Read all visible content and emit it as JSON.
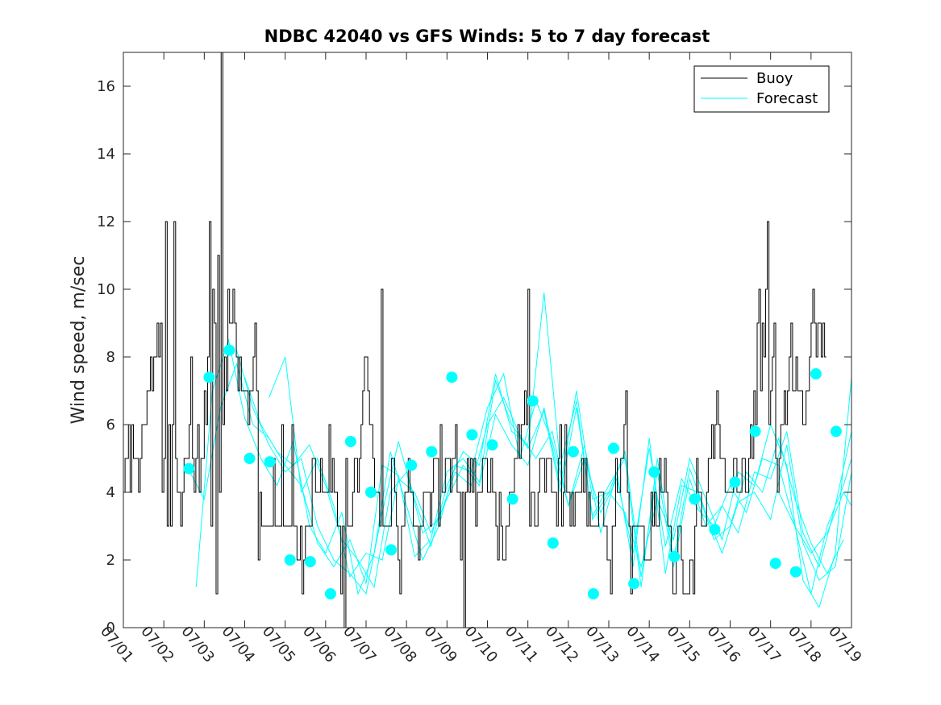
{
  "chart_data": {
    "type": "line",
    "title": "NDBC 42040 vs GFS Winds: 5 to 7 day forecast",
    "xlabel": "",
    "ylabel": "Wind speed, m/sec",
    "xlim": [
      0,
      18
    ],
    "ylim": [
      0,
      17
    ],
    "xticks": [
      0,
      1,
      2,
      3,
      4,
      5,
      6,
      7,
      8,
      9,
      10,
      11,
      12,
      13,
      14,
      15,
      16,
      17,
      18
    ],
    "xtick_labels": [
      "07/01",
      "07/02",
      "07/03",
      "07/04",
      "07/05",
      "07/06",
      "07/07",
      "07/08",
      "07/09",
      "07/10",
      "07/11",
      "07/12",
      "07/13",
      "07/14",
      "07/15",
      "07/16",
      "07/17",
      "07/18",
      "07/19"
    ],
    "yticks": [
      0,
      2,
      4,
      6,
      8,
      10,
      12,
      14,
      16
    ],
    "ytick_labels": [
      "0",
      "2",
      "4",
      "6",
      "8",
      "10",
      "12",
      "14",
      "16"
    ],
    "grid": false,
    "legend_position": "top-right",
    "colors": {
      "buoy": "#000000",
      "forecast": "#00ffff",
      "axis": "#262626"
    },
    "series": [
      {
        "name": "Buoy",
        "style": "stairs",
        "x_step_days": 0.04167,
        "x_start": 0,
        "values": [
          4,
          5,
          5,
          6,
          4,
          6,
          5,
          5,
          5,
          4,
          5,
          6,
          6,
          6,
          7,
          7,
          8,
          7,
          8,
          8,
          9,
          8,
          9,
          4,
          5,
          12,
          3,
          6,
          3,
          6,
          12,
          5,
          4,
          4,
          3,
          4,
          5,
          5,
          5,
          6,
          8,
          5,
          4,
          5,
          6,
          4,
          5,
          5,
          7,
          6,
          8,
          12,
          3,
          10,
          9,
          1,
          11,
          4,
          17,
          6,
          8,
          7,
          10,
          9,
          9,
          10,
          9,
          8,
          7,
          8,
          7,
          7,
          7,
          7,
          6,
          7,
          7,
          8,
          9,
          7,
          2,
          4,
          3,
          3,
          3,
          3,
          3,
          3,
          3,
          5,
          3,
          3,
          3,
          3,
          6,
          3,
          3,
          3,
          3,
          3,
          6,
          3,
          3,
          2,
          2,
          3,
          1,
          2,
          3,
          3,
          3,
          3,
          5,
          5,
          4,
          4,
          4,
          5,
          4,
          4,
          4,
          4,
          6,
          4,
          5,
          4,
          4,
          3,
          3,
          1,
          3,
          0,
          5,
          3,
          3,
          3,
          4,
          5,
          5,
          4,
          5,
          6,
          7,
          8,
          8,
          7,
          6,
          6,
          5,
          4,
          4,
          4,
          3,
          10,
          3,
          3,
          3,
          3,
          3,
          5,
          5,
          4,
          3,
          2,
          1,
          3,
          3,
          4,
          4,
          5,
          4,
          4,
          3,
          3,
          3,
          2,
          3,
          3,
          4,
          4,
          4,
          4,
          3,
          4,
          5,
          5,
          5,
          3,
          6,
          4,
          4,
          5,
          5,
          5,
          4,
          5,
          5,
          6,
          4,
          4,
          2,
          4,
          0,
          4,
          5,
          4,
          5,
          4,
          5,
          3,
          4,
          4,
          4,
          5,
          5,
          5,
          4,
          4,
          5,
          4,
          4,
          3,
          2,
          4,
          3,
          2,
          2,
          3,
          3,
          4,
          4,
          4,
          5,
          5,
          6,
          5,
          6,
          6,
          7,
          6,
          10,
          3,
          4,
          4,
          3,
          3,
          4,
          5,
          5,
          5,
          4,
          5,
          5,
          5,
          4,
          4,
          4,
          3,
          5,
          6,
          3,
          4,
          6,
          4,
          4,
          3,
          4,
          3,
          4,
          4,
          4,
          4,
          5,
          4,
          5,
          3,
          4,
          3,
          3,
          3,
          3,
          3,
          4,
          4,
          4,
          3,
          3,
          2,
          2,
          1,
          3,
          3,
          5,
          4,
          4,
          5,
          5,
          6,
          7,
          4,
          3,
          1,
          3,
          3,
          3,
          3,
          3,
          3,
          3,
          2,
          2,
          2,
          2,
          4,
          3,
          4,
          3,
          3,
          5,
          4,
          4,
          5,
          4,
          3,
          3,
          2,
          1,
          1,
          2,
          3,
          3,
          2,
          1,
          1,
          1,
          1,
          2,
          2,
          1,
          3,
          5,
          4,
          4,
          3,
          3,
          3,
          4,
          5,
          5,
          6,
          5,
          6,
          7,
          6,
          5,
          5,
          5,
          4,
          4,
          4,
          4,
          4,
          5,
          5,
          4,
          4,
          4,
          5,
          5,
          4,
          4,
          5,
          6,
          5,
          7,
          6,
          9,
          10,
          7,
          9,
          8,
          10,
          12,
          6,
          7,
          8,
          9,
          5,
          4,
          5,
          6,
          6,
          7,
          6,
          7,
          8,
          9,
          7,
          7,
          8,
          7,
          7,
          7,
          6,
          6,
          7,
          7,
          8,
          9,
          10,
          9,
          8,
          9,
          9,
          8,
          9,
          8
        ]
      },
      {
        "name": "Forecast",
        "style": "lines",
        "note_lines": "multiple overlapping forecast runs drawn in cyan",
        "runs": [
          {
            "x": [
              1.6,
              2.0,
              2.4,
              2.8,
              3.2,
              3.6,
              4.0,
              4.4,
              4.8,
              5.2,
              5.6,
              6.0,
              6.4,
              6.8,
              7.2,
              7.6,
              8.0,
              8.4,
              8.8,
              9.2,
              9.6,
              10.0,
              10.4,
              10.8,
              11.2,
              11.6,
              12.0,
              12.4,
              12.8,
              13.2,
              13.6,
              14.0,
              14.4,
              14.8,
              15.2,
              15.6,
              16.0,
              16.4,
              16.8,
              17.2,
              17.6,
              18.0
            ],
            "y": [
              4.7,
              3.8,
              6.5,
              7.8,
              6.0,
              5.6,
              4.8,
              4.2,
              2.5,
              1.8,
              2.6,
              1.3,
              4.8,
              4.5,
              2.1,
              2.6,
              4.6,
              5.0,
              4.3,
              7.3,
              6.0,
              5.3,
              6.4,
              4.0,
              6.5,
              3.3,
              4.2,
              5.0,
              1.2,
              5.0,
              2.0,
              4.7,
              3.4,
              2.2,
              3.7,
              4.0,
              3.2,
              5.4,
              2.5,
              1.4,
              1.8,
              4.6
            ]
          },
          {
            "x": [
              1.8,
              2.2,
              2.6,
              3.0,
              3.4,
              3.8,
              4.2,
              4.6,
              5.0,
              5.4,
              5.8,
              6.2,
              6.6,
              7.0,
              7.4,
              7.8,
              8.2,
              8.6,
              9.0,
              9.4,
              9.8,
              10.2,
              10.6,
              11.0,
              11.4,
              11.8,
              12.2,
              12.6,
              13.0,
              13.4,
              13.8,
              14.2,
              14.6,
              15.0,
              15.4,
              15.8,
              16.2,
              16.6,
              17.0,
              17.4,
              17.8
            ],
            "y": [
              1.2,
              7.0,
              8.5,
              6.2,
              5.0,
              4.2,
              5.5,
              3.0,
              2.2,
              3.4,
              1.0,
              2.2,
              5.2,
              3.6,
              2.0,
              3.0,
              4.8,
              4.6,
              6.5,
              7.5,
              5.0,
              6.7,
              5.5,
              3.6,
              5.4,
              2.8,
              4.6,
              1.8,
              5.6,
              1.6,
              4.2,
              4.0,
              2.6,
              3.0,
              4.6,
              4.0,
              5.6,
              3.8,
              2.5,
              1.6,
              2.6
            ]
          },
          {
            "x": [
              2.8,
              3.2,
              3.6,
              4.0,
              4.4,
              4.8,
              5.2,
              5.6,
              6.0,
              6.4,
              6.8,
              7.2,
              7.6,
              8.0,
              8.4,
              8.8,
              9.2,
              9.6,
              10.0,
              10.4,
              10.8,
              11.2,
              11.6,
              12.0,
              12.4,
              12.8,
              13.2,
              13.6,
              14.0,
              14.4,
              14.8,
              15.2,
              15.6,
              16.0,
              16.4,
              16.8,
              17.2,
              17.6,
              18.0
            ],
            "y": [
              8.2,
              6.5,
              5.4,
              4.6,
              5.0,
              3.0,
              2.0,
              1.6,
              1.0,
              3.4,
              5.5,
              3.8,
              2.4,
              4.2,
              5.2,
              4.8,
              7.5,
              5.8,
              5.4,
              9.9,
              4.8,
              6.7,
              3.2,
              4.0,
              5.2,
              1.5,
              4.6,
              1.8,
              4.4,
              3.0,
              3.6,
              2.8,
              4.6,
              4.4,
              5.8,
              2.8,
              1.8,
              3.6,
              5.8
            ]
          },
          {
            "x": [
              3.0,
              3.4,
              3.8,
              4.2,
              4.6,
              5.0,
              5.4,
              5.8,
              6.2,
              6.6,
              7.0,
              7.4,
              7.8,
              8.2,
              8.6,
              9.0,
              9.4,
              9.8,
              10.2,
              10.6,
              11.0,
              11.4,
              11.8,
              12.2,
              12.6,
              13.0,
              13.4,
              13.8,
              14.2,
              14.6,
              15.0,
              15.4,
              15.8,
              16.2,
              16.6,
              17.0,
              17.4,
              17.8,
              18.0
            ],
            "y": [
              7.4,
              6.0,
              5.2,
              4.8,
              5.4,
              4.2,
              2.6,
              2.0,
              1.2,
              4.0,
              4.6,
              2.8,
              3.2,
              4.6,
              4.2,
              6.0,
              6.8,
              5.7,
              5.0,
              5.8,
              3.6,
              5.0,
              3.4,
              4.4,
              2.2,
              5.3,
              2.4,
              4.4,
              3.5,
              3.0,
              4.2,
              3.4,
              5.0,
              4.8,
              3.0,
              2.2,
              2.8,
              4.0,
              3.6
            ]
          },
          {
            "x": [
              3.6,
              4.0,
              4.4,
              4.8,
              5.2,
              5.6,
              6.0,
              6.4,
              6.8,
              7.2,
              7.6,
              8.0,
              8.4,
              8.8,
              9.2,
              9.6,
              10.0,
              10.4,
              10.8,
              11.2,
              11.6,
              12.0,
              12.4,
              12.8,
              13.2,
              13.6,
              14.0,
              14.4,
              14.8,
              15.2,
              15.6,
              16.0,
              16.4,
              16.8,
              17.2,
              17.6,
              18.0
            ],
            "y": [
              6.8,
              8.0,
              4.0,
              5.0,
              3.6,
              1.5,
              2.2,
              2.0,
              4.4,
              4.0,
              2.8,
              3.8,
              4.8,
              4.2,
              6.3,
              5.4,
              4.8,
              6.5,
              4.2,
              7.0,
              3.8,
              4.0,
              3.4,
              1.8,
              3.8,
              2.6,
              5.0,
              3.8,
              2.6,
              4.6,
              4.2,
              6.0,
              4.8,
              1.4,
              0.6,
              2.2,
              7.4
            ]
          },
          {
            "x": [
              16.2,
              16.6,
              17.0,
              17.4,
              17.8,
              18.0
            ],
            "y": [
              4.0,
              3.0,
              1.0,
              3.0,
              4.2,
              5.0
            ]
          }
        ]
      },
      {
        "name": "",
        "style": "markers",
        "color": "#00ffff",
        "x": [
          1.62,
          2.12,
          2.62,
          3.12,
          3.62,
          4.12,
          4.62,
          5.12,
          5.62,
          6.12,
          6.62,
          7.12,
          7.62,
          8.12,
          8.62,
          9.12,
          9.62,
          10.12,
          10.62,
          11.12,
          11.62,
          12.12,
          12.62,
          13.12,
          13.62,
          14.12,
          14.62,
          15.12,
          15.62,
          16.12,
          16.62,
          17.12,
          17.62
        ],
        "y": [
          4.7,
          7.4,
          8.2,
          5.0,
          4.9,
          2.0,
          1.95,
          1.0,
          5.5,
          4.0,
          2.3,
          4.8,
          5.2,
          7.4,
          5.7,
          5.4,
          3.8,
          6.7,
          2.5,
          5.2,
          1.0,
          5.3,
          1.3,
          4.6,
          2.1,
          3.8,
          2.9,
          4.3,
          5.8,
          1.9,
          1.65,
          7.5,
          5.8
        ]
      }
    ]
  }
}
